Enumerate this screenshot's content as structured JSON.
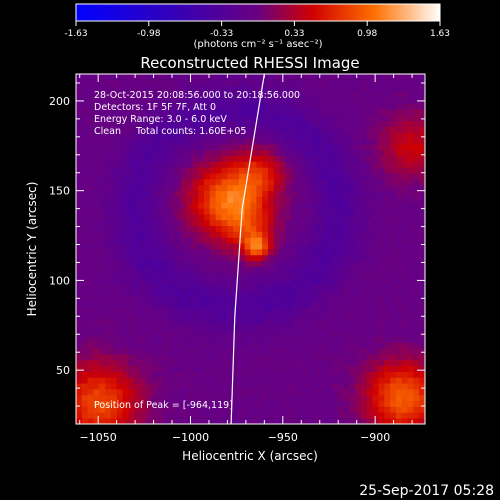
{
  "colorbar": {
    "tick_labels": [
      "-1.63",
      "-0.98",
      "-0.33",
      "0.33",
      "0.98",
      "1.63"
    ],
    "units": "(photons cm⁻² s⁻¹ asec⁻²)",
    "min": -1.63,
    "max": 1.63
  },
  "title": "Reconstructed RHESSI Image",
  "info_lines": [
    "28-Oct-2015 20:08:56.000 to 20:18:56.000",
    "Detectors: 1F 5F 7F, Att 0",
    "Energy Range: 3.0 - 6.0 keV",
    "Clean     Total counts: 1.60E+05"
  ],
  "peak_text": "Position of Peak = [-964,119]",
  "footer_date": "25-Sep-2017 05:28",
  "axes": {
    "xlabel": "Heliocentric X (arcsec)",
    "ylabel": "Heliocentric Y (arcsec)",
    "xlim": [
      -1062,
      -873
    ],
    "ylim": [
      20,
      215
    ],
    "xticks": [
      -1050,
      -1000,
      -950,
      -900
    ],
    "xtick_labels": [
      "−1050",
      "−1000",
      "−950",
      "−900"
    ],
    "yticks": [
      50,
      100,
      150,
      200
    ],
    "ytick_labels": [
      "50",
      "100",
      "150",
      "200"
    ]
  },
  "chart_data": {
    "type": "heatmap",
    "title": "Reconstructed RHESSI Image",
    "xlabel": "Heliocentric X (arcsec)",
    "ylabel": "Heliocentric Y (arcsec)",
    "peak": [
      -964,
      119
    ],
    "limb_points": [
      [
        -960,
        215
      ],
      [
        -972,
        140
      ],
      [
        -976,
        80
      ],
      [
        -978,
        20
      ]
    ],
    "sources": [
      {
        "x": -980,
        "y": 145,
        "amp": 1.05,
        "r": 20
      },
      {
        "x": -962,
        "y": 160,
        "amp": 0.55,
        "r": 14
      },
      {
        "x": -964,
        "y": 119,
        "amp": 0.9,
        "r": 7
      },
      {
        "x": -968,
        "y": 130,
        "amp": 0.45,
        "r": 14
      },
      {
        "x": -1050,
        "y": 32,
        "amp": 0.9,
        "r": 22
      },
      {
        "x": -885,
        "y": 35,
        "amp": 1.0,
        "r": 20
      },
      {
        "x": -880,
        "y": 175,
        "amp": 0.5,
        "r": 18
      }
    ]
  }
}
